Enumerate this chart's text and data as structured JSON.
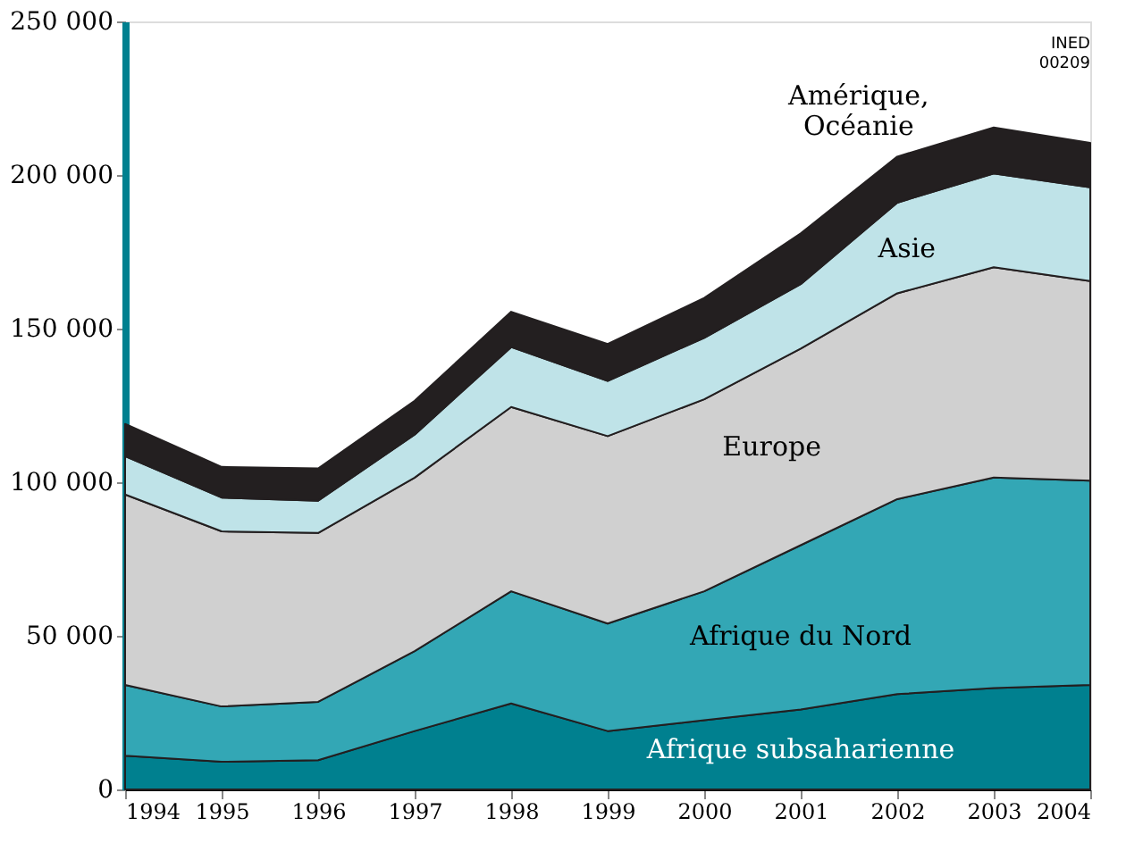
{
  "chart_data": {
    "type": "area",
    "stacked": true,
    "legend": false,
    "grid": false,
    "x": [
      1994,
      1995,
      1996,
      1997,
      1998,
      1999,
      2000,
      2001,
      2002,
      2003,
      2004
    ],
    "xlim": [
      1994,
      2004
    ],
    "xticks": [
      1994,
      1995,
      1996,
      1997,
      1998,
      1999,
      2000,
      2001,
      2002,
      2003,
      2004
    ],
    "ylim": [
      0,
      250000
    ],
    "yticks": [
      {
        "value": 0,
        "label": "0"
      },
      {
        "value": 50000,
        "label": "50 000"
      },
      {
        "value": 100000,
        "label": "100 000"
      },
      {
        "value": 150000,
        "label": "150 000"
      },
      {
        "value": 200000,
        "label": "200 000"
      },
      {
        "value": 250000,
        "label": "250 000"
      }
    ],
    "annotations": [
      "INED\n00209"
    ],
    "series": [
      {
        "name": "Afrique subsaharienne",
        "color": "#00808f",
        "values": [
          11000,
          9000,
          9500,
          19000,
          28000,
          19000,
          22500,
          26000,
          31000,
          33000,
          34000
        ]
      },
      {
        "name": "Afrique du Nord",
        "color": "#33a7b5",
        "values": [
          23000,
          18000,
          19000,
          26000,
          36500,
          35000,
          42000,
          53500,
          63500,
          68500,
          66500
        ]
      },
      {
        "name": "Europe",
        "color": "#d0d0d0",
        "values": [
          62000,
          57000,
          55000,
          56500,
          60000,
          61000,
          62500,
          64000,
          67000,
          68500,
          65000
        ]
      },
      {
        "name": "Asie",
        "color": "#bfe3e8",
        "values": [
          12500,
          11000,
          10500,
          14000,
          19500,
          18000,
          20000,
          21000,
          29500,
          30500,
          30500
        ]
      },
      {
        "name": "Amérique,\nOcéanie",
        "color": "#231f20",
        "values": [
          10500,
          10000,
          10500,
          11000,
          11500,
          12000,
          13000,
          16500,
          15000,
          15000,
          14500
        ]
      }
    ]
  }
}
